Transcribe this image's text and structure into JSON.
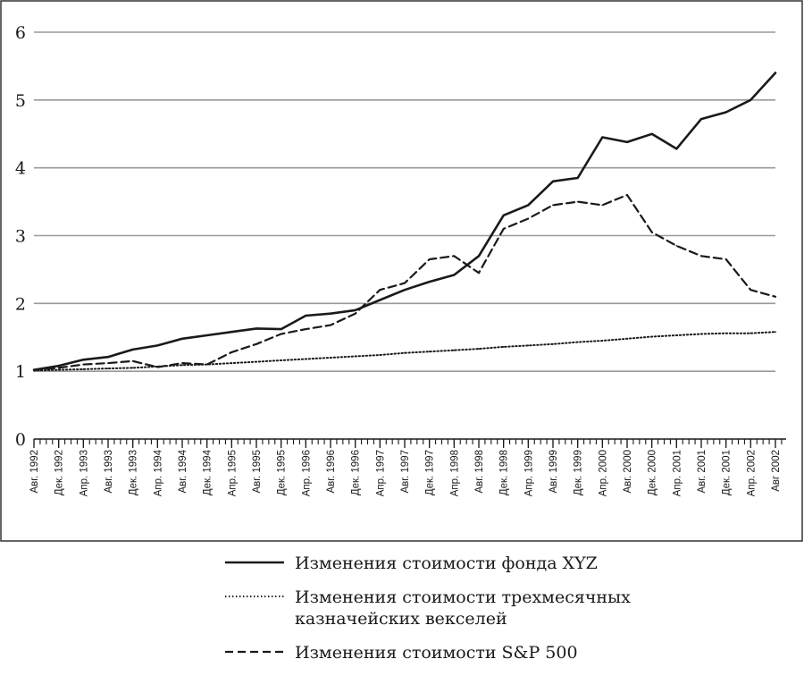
{
  "chart_data": {
    "type": "line",
    "title": "",
    "xlabel": "",
    "ylabel": "",
    "ylim": [
      0,
      6
    ],
    "y_ticks": [
      "0",
      "1",
      "2",
      "3",
      "4",
      "5",
      "6"
    ],
    "grid": true,
    "legend_position": "bottom",
    "x_tick_labels": [
      "Авг. 1992",
      "Дек. 1992",
      "Апр. 1993",
      "Авг. 1993",
      "Дек. 1993",
      "Апр. 1994",
      "Авг. 1994",
      "Дек. 1994",
      "Апр. 1995",
      "Авг. 1995",
      "Дек. 1995",
      "Апр. 1996",
      "Авг. 1996",
      "Дек. 1996",
      "Апр. 1997",
      "Авг. 1997",
      "Дек. 1997",
      "Апр. 1998",
      "Авг. 1998",
      "Дек. 1998",
      "Апр. 1999",
      "Авг. 1999",
      "Дек. 1999",
      "Апр. 2000",
      "Авг. 2000",
      "Дек. 2000",
      "Апр. 2001",
      "Авг. 2001",
      "Дек. 2001",
      "Апр. 2002",
      "Авг 2002"
    ],
    "series": [
      {
        "name": "Изменения стоимости фонда XYZ",
        "style": "solid",
        "color": "#1a1a1a",
        "points": [
          [
            "Авг. 1992",
            1.02
          ],
          [
            "Дек. 1992",
            1.08
          ],
          [
            "Апр. 1993",
            1.17
          ],
          [
            "Авг. 1993",
            1.21
          ],
          [
            "Дек. 1993",
            1.32
          ],
          [
            "Апр. 1994",
            1.38
          ],
          [
            "Авг. 1994",
            1.48
          ],
          [
            "Дек. 1994",
            1.53
          ],
          [
            "Апр. 1995",
            1.58
          ],
          [
            "Авг. 1995",
            1.63
          ],
          [
            "Дек. 1995",
            1.62
          ],
          [
            "Апр. 1996",
            1.82
          ],
          [
            "Авг. 1996",
            1.85
          ],
          [
            "Дек. 1996",
            1.9
          ],
          [
            "Апр. 1997",
            2.05
          ],
          [
            "Авг. 1997",
            2.2
          ],
          [
            "Дек. 1997",
            2.32
          ],
          [
            "Апр. 1998",
            2.42
          ],
          [
            "Авг. 1998",
            2.7
          ],
          [
            "Дек. 1998",
            3.3
          ],
          [
            "Апр. 1999",
            3.45
          ],
          [
            "Авг. 1999",
            3.8
          ],
          [
            "Дек. 1999",
            3.85
          ],
          [
            "Апр. 2000",
            4.45
          ],
          [
            "Авг. 2000",
            4.38
          ],
          [
            "Дек. 2000",
            4.5
          ],
          [
            "Апр. 2001",
            4.28
          ],
          [
            "Авг. 2001",
            4.72
          ],
          [
            "Дек. 2001",
            4.82
          ],
          [
            "Апр. 2002",
            5.0
          ],
          [
            "Авг 2002",
            5.4
          ]
        ]
      },
      {
        "name": "Изменения стоимости трехмесячных\nказначейских векселей",
        "style": "dotted",
        "color": "#1a1a1a",
        "points": [
          [
            "Авг. 1992",
            1.01
          ],
          [
            "Дек. 1992",
            1.02
          ],
          [
            "Апр. 1993",
            1.03
          ],
          [
            "Авг. 1993",
            1.04
          ],
          [
            "Дек. 1993",
            1.05
          ],
          [
            "Апр. 1994",
            1.07
          ],
          [
            "Авг. 1994",
            1.09
          ],
          [
            "Дек. 1994",
            1.1
          ],
          [
            "Апр. 1995",
            1.12
          ],
          [
            "Авг. 1995",
            1.14
          ],
          [
            "Дек. 1995",
            1.16
          ],
          [
            "Апр. 1996",
            1.18
          ],
          [
            "Авг. 1996",
            1.2
          ],
          [
            "Дек. 1996",
            1.22
          ],
          [
            "Апр. 1997",
            1.24
          ],
          [
            "Авг. 1997",
            1.27
          ],
          [
            "Дек. 1997",
            1.29
          ],
          [
            "Апр. 1998",
            1.31
          ],
          [
            "Авг. 1998",
            1.33
          ],
          [
            "Дек. 1998",
            1.36
          ],
          [
            "Апр. 1999",
            1.38
          ],
          [
            "Авг. 1999",
            1.4
          ],
          [
            "Дек. 1999",
            1.43
          ],
          [
            "Апр. 2000",
            1.45
          ],
          [
            "Авг. 2000",
            1.48
          ],
          [
            "Дек. 2000",
            1.51
          ],
          [
            "Апр. 2001",
            1.53
          ],
          [
            "Авг. 2001",
            1.55
          ],
          [
            "Дек. 2001",
            1.56
          ],
          [
            "Апр. 2002",
            1.56
          ],
          [
            "Авг 2002",
            1.58
          ]
        ]
      },
      {
        "name": "Изменения стоимости S&P 500",
        "style": "dashed",
        "color": "#1a1a1a",
        "points": [
          [
            "Авг. 1992",
            1.02
          ],
          [
            "Дек. 1992",
            1.05
          ],
          [
            "Апр. 1993",
            1.1
          ],
          [
            "Авг. 1993",
            1.12
          ],
          [
            "Дек. 1993",
            1.15
          ],
          [
            "Апр. 1994",
            1.06
          ],
          [
            "Авг. 1994",
            1.12
          ],
          [
            "Дек. 1994",
            1.1
          ],
          [
            "Апр. 1995",
            1.28
          ],
          [
            "Авг. 1995",
            1.4
          ],
          [
            "Дек. 1995",
            1.55
          ],
          [
            "Апр. 1996",
            1.62
          ],
          [
            "Авг. 1996",
            1.68
          ],
          [
            "Дек. 1996",
            1.85
          ],
          [
            "Апр. 1997",
            2.2
          ],
          [
            "Авг. 1997",
            2.3
          ],
          [
            "Дек. 1997",
            2.65
          ],
          [
            "Апр. 1998",
            2.7
          ],
          [
            "Авг. 1998",
            2.45
          ],
          [
            "Дек. 1998",
            3.1
          ],
          [
            "Апр. 1999",
            3.25
          ],
          [
            "Авг. 1999",
            3.45
          ],
          [
            "Дек. 1999",
            3.5
          ],
          [
            "Апр. 2000",
            3.45
          ],
          [
            "Авг. 2000",
            3.6
          ],
          [
            "Дек. 2000",
            3.05
          ],
          [
            "Апр. 2001",
            2.85
          ],
          [
            "Авг. 2001",
            2.7
          ],
          [
            "Дек. 2001",
            2.65
          ],
          [
            "Апр. 2002",
            2.2
          ],
          [
            "Авг 2002",
            2.1
          ]
        ]
      }
    ]
  }
}
